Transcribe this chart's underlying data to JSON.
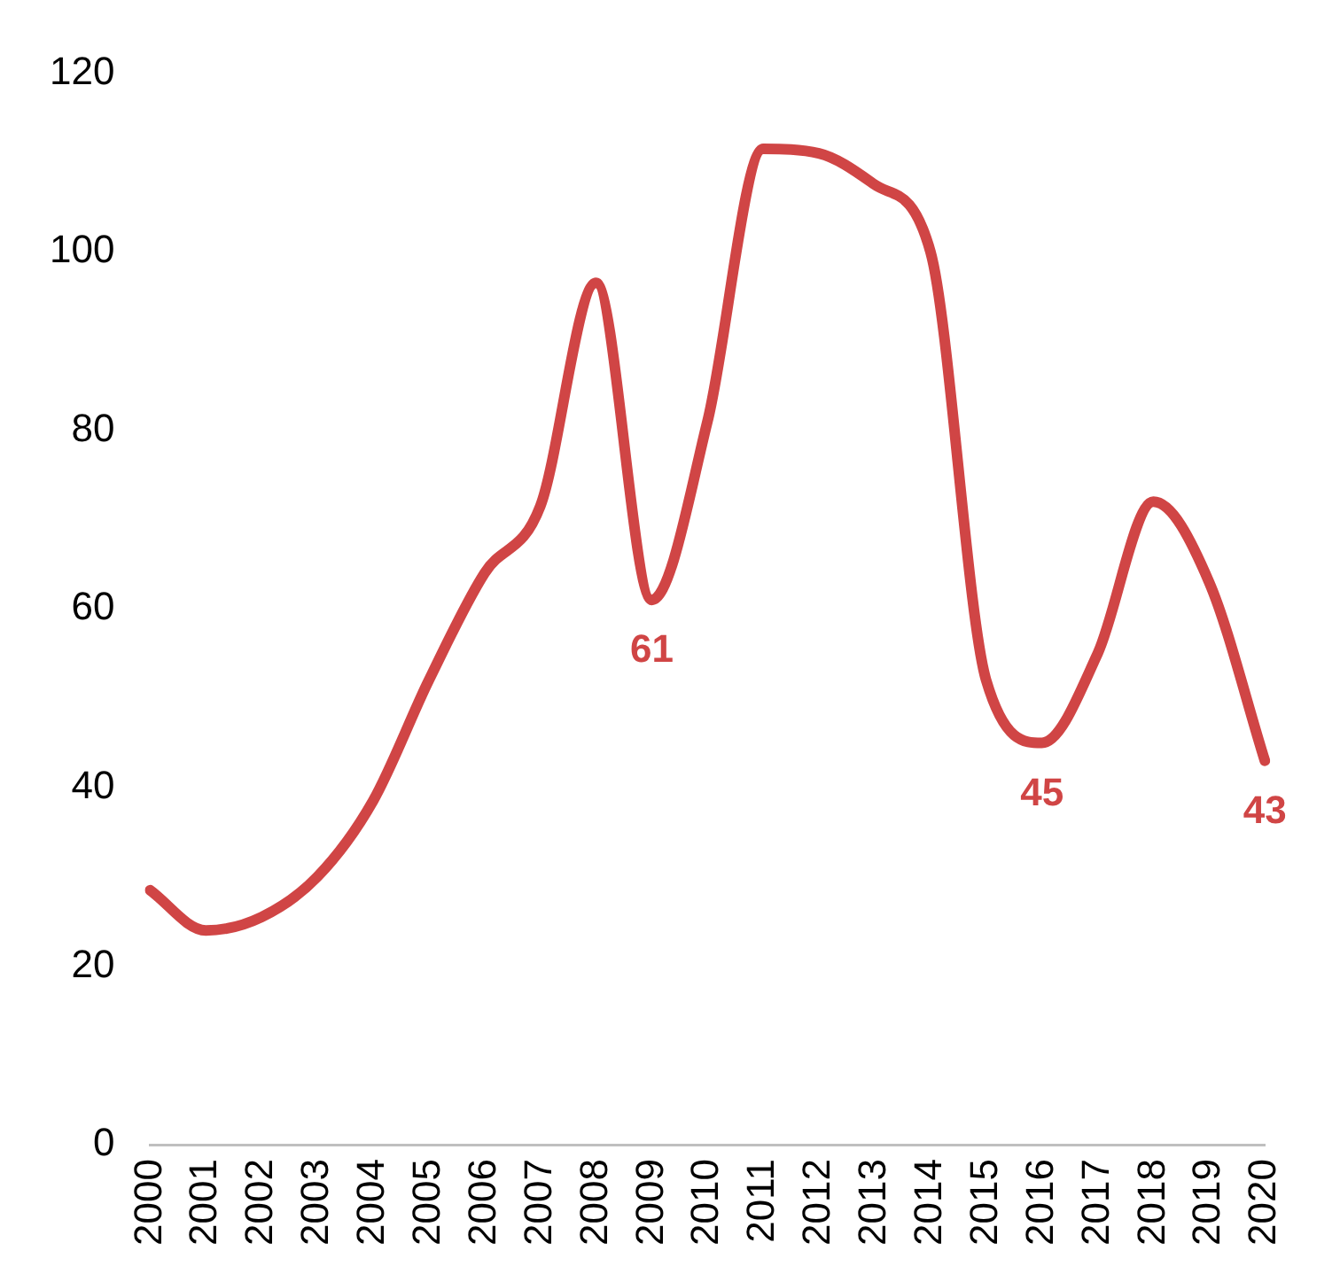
{
  "chart_data": {
    "type": "line",
    "categories": [
      "2000",
      "2001",
      "2002",
      "2003",
      "2004",
      "2005",
      "2006",
      "2007",
      "2008",
      "2009",
      "2010",
      "2011",
      "2012",
      "2013",
      "2014",
      "2015",
      "2016",
      "2017",
      "2018",
      "2019",
      "2020"
    ],
    "series": [
      {
        "color": "#d04545",
        "values": [
          28.5,
          24,
          25.5,
          30,
          38.5,
          52,
          64,
          71.5,
          96.5,
          61,
          81,
          111.5,
          111,
          107.5,
          100,
          52,
          45,
          55,
          72,
          63,
          43
        ],
        "value_labels": [
          null,
          null,
          null,
          null,
          null,
          null,
          null,
          null,
          null,
          "61",
          null,
          null,
          null,
          null,
          null,
          null,
          "45",
          null,
          null,
          null,
          "43"
        ]
      }
    ],
    "ylim": [
      0,
      120
    ],
    "yticks": [
      0,
      20,
      40,
      60,
      80,
      100,
      120
    ],
    "grid": false,
    "legend": false,
    "marker": "none",
    "line_style": "solid"
  }
}
